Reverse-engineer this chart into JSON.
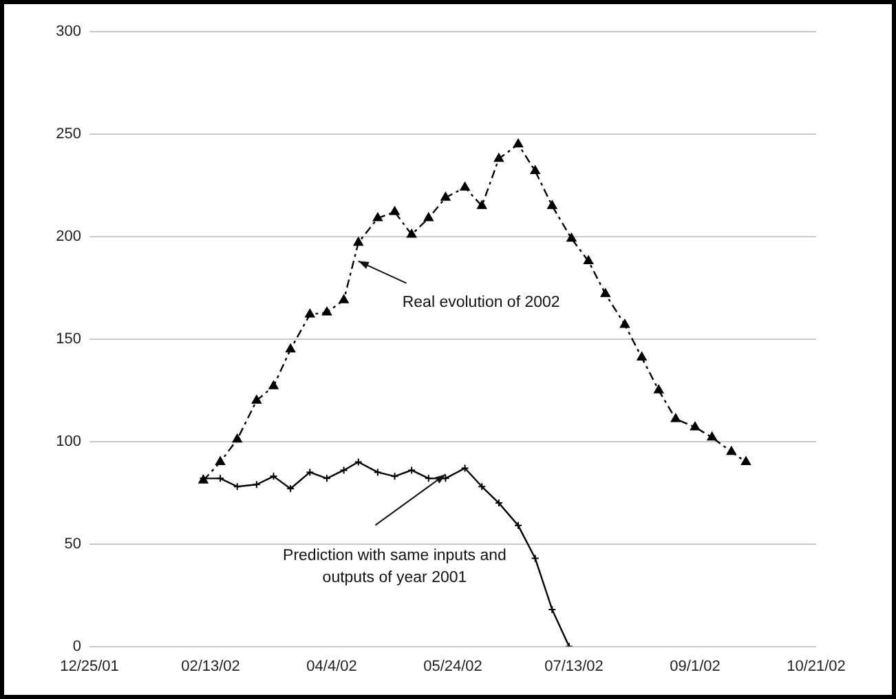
{
  "chart_data": {
    "type": "line",
    "x": [
      "2002-02-10",
      "2002-02-17",
      "2002-02-24",
      "2002-03-04",
      "2002-03-11",
      "2002-03-18",
      "2002-03-26",
      "2002-04-02",
      "2002-04-09",
      "2002-04-15",
      "2002-04-23",
      "2002-04-30",
      "2002-05-07",
      "2002-05-14",
      "2002-05-21",
      "2002-05-29",
      "2002-06-05",
      "2002-06-12",
      "2002-06-20",
      "2002-06-27",
      "2002-07-04",
      "2002-07-12",
      "2002-07-19",
      "2002-07-26",
      "2002-08-03",
      "2002-08-10",
      "2002-08-17",
      "2002-08-24",
      "2002-09-01",
      "2002-09-08",
      "2002-09-16",
      "2002-09-22"
    ],
    "series": [
      {
        "color": "#000000",
        "marker": "triangle",
        "line_style": "dashed",
        "values": [
          81,
          90,
          101,
          120,
          127,
          145,
          162,
          163,
          169,
          197,
          209,
          212,
          201,
          209,
          219,
          224,
          215,
          238,
          245,
          232,
          215,
          199,
          188,
          172,
          157,
          141,
          125,
          111,
          107,
          102,
          95,
          90
        ]
      },
      {
        "color": "#000000",
        "marker": "cross",
        "line_style": "solid",
        "x": [
          "2002-02-10",
          "2002-02-17",
          "2002-02-24",
          "2002-03-04",
          "2002-03-11",
          "2002-03-18",
          "2002-03-26",
          "2002-04-02",
          "2002-04-09",
          "2002-04-15",
          "2002-04-23",
          "2002-04-30",
          "2002-05-07",
          "2002-05-14",
          "2002-05-21",
          "2002-05-29",
          "2002-06-05",
          "2002-06-12",
          "2002-06-20",
          "2002-06-27",
          "2002-07-04",
          "2002-07-11"
        ],
        "values": [
          82,
          82,
          78,
          79,
          83,
          77,
          85,
          82,
          86,
          90,
          85,
          83,
          86,
          82,
          82,
          87,
          78,
          70,
          59,
          43,
          18,
          0
        ]
      }
    ],
    "xlim": [
      "2001-12-25",
      "2002-10-21"
    ],
    "xticks": [
      {
        "value": "2001-12-25",
        "label": "12/25/01"
      },
      {
        "value": "2002-02-13",
        "label": "02/13/02"
      },
      {
        "value": "2002-04-04",
        "label": "04/4/02"
      },
      {
        "value": "2002-05-24",
        "label": "05/24/02"
      },
      {
        "value": "2002-07-13",
        "label": "07/13/02"
      },
      {
        "value": "2002-09-01",
        "label": "09/1/02"
      },
      {
        "value": "2002-10-21",
        "label": "10/21/02"
      }
    ],
    "ylim": [
      0,
      300
    ],
    "yticks": [
      0,
      50,
      100,
      150,
      200,
      250,
      300
    ],
    "grid": "y",
    "legend": false,
    "annotations": [
      {
        "text": "Real evolution of 2002",
        "x": "2002-04-15",
        "y": 188
      },
      "Prediction with same inputs and outputs of year 2001"
    ]
  }
}
